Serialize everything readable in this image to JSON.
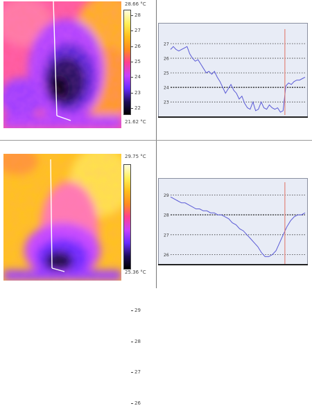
{
  "panel_top": {
    "thermal": {
      "max_label": "28.66 °C",
      "min_label": "21.62 °C",
      "scale_ticks": [
        "28",
        "27",
        "26",
        "25",
        "24",
        "23",
        "22"
      ],
      "colormap": [
        "#fdfde0",
        "#ffee55",
        "#ffbf1a",
        "#ff8a1e",
        "#ff3f8e",
        "#c640ff",
        "#6a2bff",
        "#1c0b58",
        "#000000"
      ]
    },
    "chart_data": {
      "type": "line",
      "y_ticks": [
        "27",
        "26",
        "25",
        "24",
        "23"
      ],
      "ylim": [
        22.2,
        28.0
      ],
      "y_gridlines": [
        27,
        26,
        25,
        24,
        23
      ],
      "y_bold_gridline": 24,
      "marker_x_fraction": 0.85,
      "series": [
        {
          "color": "#5a5ad6",
          "values": [
            26.6,
            26.8,
            26.6,
            26.5,
            26.6,
            26.7,
            26.8,
            26.3,
            26.0,
            25.8,
            25.9,
            25.6,
            25.3,
            25.0,
            25.1,
            24.9,
            25.1,
            24.7,
            24.4,
            24.0,
            23.6,
            23.9,
            24.2,
            23.8,
            23.6,
            23.2,
            23.4,
            22.9,
            22.6,
            22.5,
            23.0,
            22.4,
            22.5,
            23.0,
            22.6,
            22.5,
            22.8,
            22.6,
            22.5,
            22.6,
            22.3,
            22.4,
            24.1,
            24.3,
            24.2,
            24.4,
            24.5,
            24.5,
            24.6,
            24.7
          ]
        }
      ]
    }
  },
  "panel_bottom": {
    "thermal": {
      "max_label": "29.75 °C",
      "min_label": "25.36 °C",
      "scale_ticks": [
        "29",
        "28",
        "27",
        "26"
      ],
      "colormap": [
        "#fdfde0",
        "#ffee55",
        "#ffbf1a",
        "#ff8a1e",
        "#ff3f8e",
        "#c640ff",
        "#6a2bff",
        "#1c0b58",
        "#000000"
      ]
    },
    "chart_data": {
      "type": "line",
      "y_ticks": [
        "29",
        "28",
        "27",
        "26"
      ],
      "ylim": [
        25.6,
        29.5
      ],
      "y_gridlines": [
        29,
        28,
        27,
        26
      ],
      "y_bold_gridline": 28,
      "marker_x_fraction": 0.85,
      "series": [
        {
          "color": "#5a5ad6",
          "values": [
            28.9,
            28.8,
            28.7,
            28.6,
            28.6,
            28.5,
            28.4,
            28.3,
            28.3,
            28.2,
            28.2,
            28.1,
            28.1,
            28.0,
            28.0,
            27.9,
            27.8,
            27.6,
            27.5,
            27.3,
            27.2,
            27.0,
            26.8,
            26.6,
            26.4,
            26.1,
            25.9,
            25.9,
            26.0,
            26.2,
            26.6,
            27.0,
            27.4,
            27.7,
            27.9,
            28.0,
            28.0,
            28.1
          ]
        }
      ]
    }
  }
}
